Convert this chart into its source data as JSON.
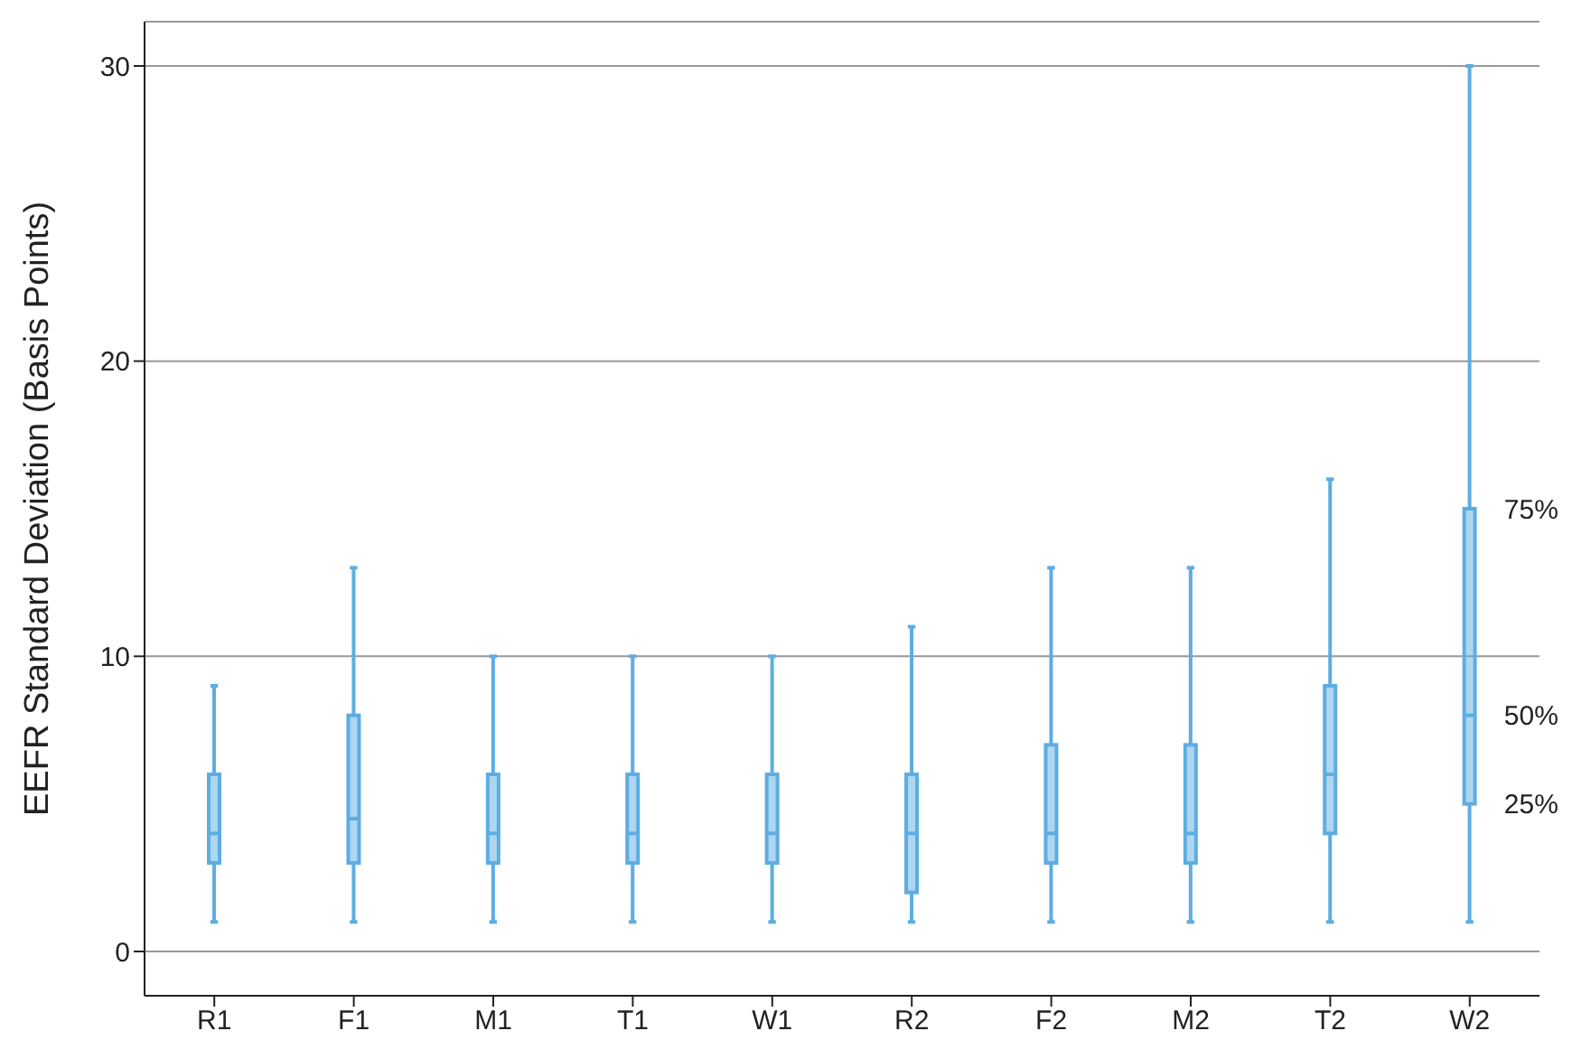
{
  "chart_data": {
    "type": "box",
    "ylabel": "EEFR Standard Deviation (Basis Points)",
    "categories": [
      "R1",
      "F1",
      "M1",
      "T1",
      "W1",
      "R2",
      "F2",
      "M2",
      "T2",
      "W2"
    ],
    "boxes": [
      {
        "low": 1,
        "q1": 3,
        "median": 4,
        "q3": 6,
        "high": 9
      },
      {
        "low": 1,
        "q1": 3,
        "median": 4.5,
        "q3": 8,
        "high": 13
      },
      {
        "low": 1,
        "q1": 3,
        "median": 4,
        "q3": 6,
        "high": 10
      },
      {
        "low": 1,
        "q1": 3,
        "median": 4,
        "q3": 6,
        "high": 10
      },
      {
        "low": 1,
        "q1": 3,
        "median": 4,
        "q3": 6,
        "high": 10
      },
      {
        "low": 1,
        "q1": 2,
        "median": 4,
        "q3": 6,
        "high": 11
      },
      {
        "low": 1,
        "q1": 3,
        "median": 4,
        "q3": 7,
        "high": 13
      },
      {
        "low": 1,
        "q1": 3,
        "median": 4,
        "q3": 7,
        "high": 13
      },
      {
        "low": 1,
        "q1": 4,
        "median": 6,
        "q3": 9,
        "high": 16
      },
      {
        "low": 1,
        "q1": 5,
        "median": 8,
        "q3": 15,
        "high": 30
      }
    ],
    "color": "#5dade2",
    "ylim": [
      -1.5,
      31.5
    ],
    "yticks": [
      0,
      10,
      20,
      30
    ],
    "grid": "y",
    "annotations": [
      {
        "text": "75%",
        "x": "W2",
        "y": 15
      },
      {
        "text": "50%",
        "x": "W2",
        "y": 8
      },
      {
        "text": "25%",
        "x": "W2",
        "y": 5
      }
    ]
  }
}
